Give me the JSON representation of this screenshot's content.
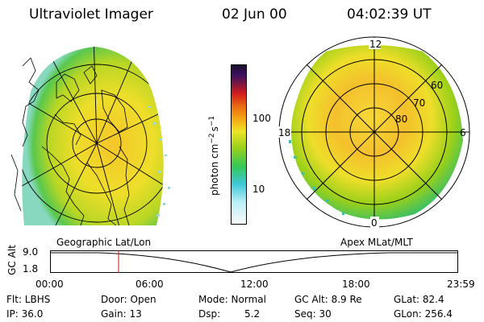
{
  "header": {
    "title": "Ultraviolet Imager",
    "date": "02 Jun 00",
    "time": "04:02:39 UT"
  },
  "left_panel": {
    "caption": "Geographic Lat/Lon"
  },
  "right_panel": {
    "caption": "Apex MLat/MLT",
    "mlt_labels": [
      "12",
      "18",
      "6",
      "0"
    ],
    "lat_labels": [
      "60",
      "70",
      "80"
    ]
  },
  "colorbar": {
    "unit_label": "photon cm",
    "unit_sup1": "−2",
    "unit_mid": "s",
    "unit_sup2": "−1",
    "ticks": [
      "100",
      "10"
    ],
    "colors": [
      "#fafafa",
      "#b8eef6",
      "#3ec8d8",
      "#32c85a",
      "#9ad01a",
      "#ece426",
      "#f4a814",
      "#ea6a12",
      "#d41c1c",
      "#801840",
      "#3a1060",
      "#18102c"
    ]
  },
  "altitude_plot": {
    "ylabel": "GC Alt",
    "y_ticks": [
      "9.0",
      "1.8"
    ],
    "x_ticks": [
      "00:00",
      "06:00",
      "12:00",
      "18:00",
      "23:59"
    ],
    "marker_color": "#e01010"
  },
  "info": {
    "flt": "Flt: LBHS",
    "door": "Door: Open",
    "mode": "Mode: Normal",
    "gc_alt": "GC Alt: 8.9 Re",
    "glat": "GLat: 82.4",
    "ip": "IP: 36.0",
    "gain": "Gain: 13",
    "dsp_label": "Dsp:",
    "dsp_value": "5.2",
    "seq": "Seq: 30",
    "glon": "GLon: 256.4"
  }
}
